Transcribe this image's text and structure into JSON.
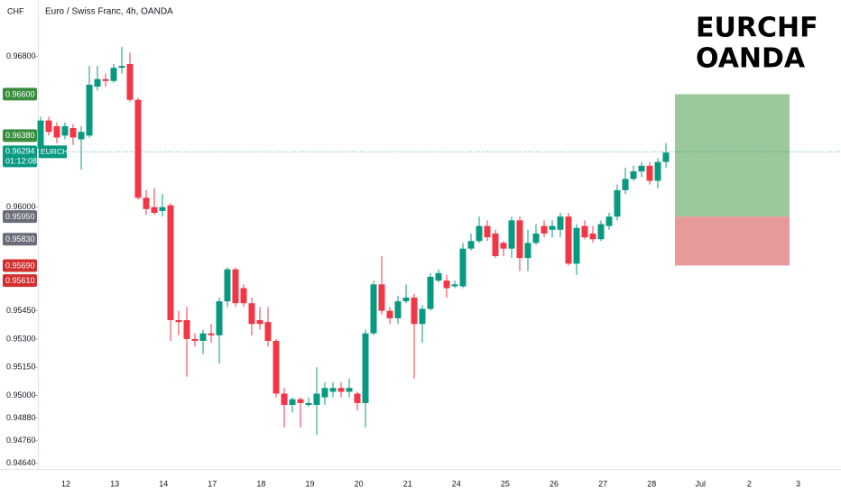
{
  "chart_data": {
    "type": "candlestick",
    "currency": "CHF",
    "title": "Euro / Swiss Franc, 4h, OANDA",
    "annotation": [
      "EURCHF",
      "OANDA"
    ],
    "up_color": "#089981",
    "down_color": "#f23645",
    "candles": {
      "open": [
        0.9631,
        0.9646,
        0.9643,
        0.9638,
        0.9642,
        0.9636,
        0.9638,
        0.9664,
        0.9668,
        0.9667,
        0.9674,
        0.9676,
        0.9657,
        0.9605,
        0.96,
        0.9598,
        0.9601,
        0.954,
        0.954,
        0.953,
        0.9529,
        0.9533,
        0.9532,
        0.955,
        0.9567,
        0.9557,
        0.9549,
        0.954,
        0.9539,
        0.9529,
        0.9501,
        0.9495,
        0.9498,
        0.9495,
        0.9495,
        0.9499,
        0.9502,
        0.9504,
        0.9502,
        0.9501,
        0.9496,
        0.9533,
        0.9559,
        0.9545,
        0.9541,
        0.955,
        0.9552,
        0.9538,
        0.9546,
        0.9561,
        0.9561,
        0.9558,
        0.9558,
        0.9578,
        0.9582,
        0.959,
        0.9586,
        0.9581,
        0.9578,
        0.9593,
        0.9573,
        0.9581,
        0.959,
        0.9588,
        0.9588,
        0.9595,
        0.957,
        0.959,
        0.9586,
        0.9583,
        0.959,
        0.9595,
        0.9609,
        0.9615,
        0.9619,
        0.9622,
        0.9614,
        0.9624
      ],
      "high": [
        0.9648,
        0.9648,
        0.9645,
        0.9645,
        0.9644,
        0.9643,
        0.9675,
        0.9675,
        0.9671,
        0.9676,
        0.9685,
        0.9682,
        0.9658,
        0.9609,
        0.961,
        0.9607,
        0.9602,
        0.9545,
        0.9547,
        0.9533,
        0.9535,
        0.9538,
        0.9552,
        0.9568,
        0.9568,
        0.9559,
        0.9552,
        0.9547,
        0.9547,
        0.953,
        0.9504,
        0.9499,
        0.9499,
        0.9499,
        0.9515,
        0.9507,
        0.9507,
        0.9507,
        0.9509,
        0.9502,
        0.9535,
        0.9561,
        0.9574,
        0.9547,
        0.9553,
        0.9559,
        0.9554,
        0.9548,
        0.9565,
        0.9567,
        0.9564,
        0.9561,
        0.9581,
        0.9586,
        0.9595,
        0.9593,
        0.9588,
        0.9582,
        0.9595,
        0.9595,
        0.9588,
        0.9591,
        0.9593,
        0.9593,
        0.9597,
        0.9597,
        0.9591,
        0.9593,
        0.959,
        0.9593,
        0.9597,
        0.9612,
        0.9621,
        0.9622,
        0.9624,
        0.9624,
        0.9626,
        0.9634
      ],
      "low": [
        0.9628,
        0.9638,
        0.9634,
        0.9636,
        0.9633,
        0.962,
        0.9637,
        0.9662,
        0.9664,
        0.9666,
        0.9671,
        0.9656,
        0.9604,
        0.9596,
        0.9596,
        0.9595,
        0.9529,
        0.9532,
        0.951,
        0.9526,
        0.9522,
        0.9528,
        0.9517,
        0.9547,
        0.9547,
        0.9547,
        0.9532,
        0.9535,
        0.9526,
        0.9499,
        0.9483,
        0.9491,
        0.9483,
        0.9494,
        0.9479,
        0.9495,
        0.9499,
        0.9499,
        0.9499,
        0.9492,
        0.9483,
        0.9532,
        0.9543,
        0.9538,
        0.9538,
        0.9549,
        0.9509,
        0.9528,
        0.9545,
        0.956,
        0.9552,
        0.9557,
        0.9557,
        0.9577,
        0.9581,
        0.9582,
        0.9573,
        0.9574,
        0.9573,
        0.9566,
        0.9566,
        0.958,
        0.9584,
        0.9584,
        0.9584,
        0.9569,
        0.9564,
        0.9583,
        0.9581,
        0.9582,
        0.9588,
        0.9593,
        0.9607,
        0.9614,
        0.9616,
        0.9612,
        0.961,
        0.9621
      ],
      "close": [
        0.9646,
        0.964,
        0.9637,
        0.9643,
        0.9637,
        0.964,
        0.9665,
        0.9668,
        0.9667,
        0.9674,
        0.9675,
        0.9657,
        0.9605,
        0.9599,
        0.9597,
        0.96,
        0.954,
        0.9539,
        0.953,
        0.9529,
        0.9533,
        0.9532,
        0.955,
        0.9567,
        0.9549,
        0.9549,
        0.9538,
        0.9538,
        0.9529,
        0.9501,
        0.9495,
        0.9498,
        0.9496,
        0.9496,
        0.9501,
        0.9504,
        0.9504,
        0.9502,
        0.9504,
        0.9496,
        0.9533,
        0.9559,
        0.9545,
        0.9541,
        0.955,
        0.9552,
        0.9538,
        0.9546,
        0.9563,
        0.9565,
        0.9557,
        0.9559,
        0.9578,
        0.9582,
        0.959,
        0.9584,
        0.9574,
        0.9578,
        0.9593,
        0.9573,
        0.9581,
        0.9586,
        0.9586,
        0.959,
        0.9595,
        0.957,
        0.9589,
        0.9584,
        0.9583,
        0.9591,
        0.9595,
        0.9609,
        0.9615,
        0.9619,
        0.9622,
        0.9614,
        0.9624,
        0.9629
      ]
    },
    "categories": [
      "12",
      "13",
      "14",
      "17",
      "18",
      "19",
      "20",
      "21",
      "24",
      "25",
      "26",
      "27",
      "28",
      "Jul",
      "2",
      "3"
    ],
    "ylim": [
      0.9461,
      0.971
    ],
    "yticks": [
      {
        "value": 0.968,
        "label": "0.96800"
      },
      {
        "value": 0.96,
        "label": "0.96000"
      },
      {
        "value": 0.9545,
        "label": "0.95450"
      },
      {
        "value": 0.953,
        "label": "0.95300"
      },
      {
        "value": 0.9515,
        "label": "0.95150"
      },
      {
        "value": 0.95,
        "label": "0.95000"
      },
      {
        "value": 0.9488,
        "label": "0.94880"
      },
      {
        "value": 0.9476,
        "label": "0.94760"
      },
      {
        "value": 0.9464,
        "label": "0.94640"
      }
    ],
    "price_labels": [
      {
        "value": 0.966,
        "label": "0.96600",
        "color": "#388e3c"
      },
      {
        "value": 0.9638,
        "label": "0.96380",
        "color": "#388e3c"
      },
      {
        "value": 0.9595,
        "label": "0.95950",
        "color": "#6a6d78"
      },
      {
        "value": 0.9583,
        "label": "0.95830",
        "color": "#6a6d78"
      },
      {
        "value": 0.9569,
        "label": "0.95690",
        "color": "#d32f2f"
      },
      {
        "value": 0.9561,
        "label": "0.95610",
        "color": "#d32f2f"
      }
    ],
    "current_price": {
      "value": 0.96294,
      "label": "0.96294",
      "symbol": "EURCHF",
      "countdown": "01:12:08",
      "color": "#089981"
    },
    "position": {
      "target": 0.966,
      "entry": 0.9595,
      "stop": 0.9569,
      "profit_color": "#9cc89d",
      "loss_color": "#e89a9a"
    }
  }
}
